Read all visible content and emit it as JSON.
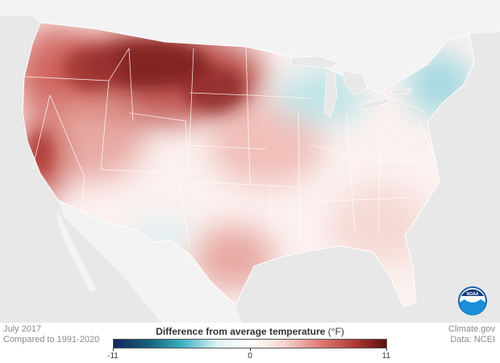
{
  "caption": {
    "date": "July 2017",
    "baseline": "Compared to 1991-2020"
  },
  "legend": {
    "title": "Difference from average temperature",
    "unit": "(°F)",
    "min": "-11",
    "mid": "0",
    "max": "11",
    "colors": [
      "#0f2a5e",
      "#15617a",
      "#3ab0bf",
      "#dff3f5",
      "#ffffff",
      "#f6d2cb",
      "#e0807a",
      "#b33a36",
      "#5c0f0f"
    ]
  },
  "credits": {
    "source": "Climate.gov",
    "data": "Data: NCEI"
  },
  "logo": {
    "text": "NOAA"
  },
  "map": {
    "background": "#e8e8e8",
    "land_outside": "#f3f3f3",
    "anomaly_regions": [
      {
        "region": "northern-plains-rockies",
        "anomaly_f": 6,
        "color": "#a8322f"
      },
      {
        "region": "montana-core",
        "anomaly_f": 9,
        "color": "#7d1e1e"
      },
      {
        "region": "pacific-northwest",
        "anomaly_f": 4,
        "color": "#cf5e57"
      },
      {
        "region": "great-basin",
        "anomaly_f": 3,
        "color": "#e49a92"
      },
      {
        "region": "california-coast",
        "anomaly_f": 5,
        "color": "#c24a44"
      },
      {
        "region": "central-plains",
        "anomaly_f": 2,
        "color": "#eeb3ab"
      },
      {
        "region": "south-texas",
        "anomaly_f": 3,
        "color": "#e3978f"
      },
      {
        "region": "great-lakes",
        "anomaly_f": -1,
        "color": "#c9ebee"
      },
      {
        "region": "northern-new-england",
        "anomaly_f": -2,
        "color": "#a8dde3"
      },
      {
        "region": "southeast",
        "anomaly_f": 0,
        "color": "#fbeeee"
      }
    ]
  }
}
